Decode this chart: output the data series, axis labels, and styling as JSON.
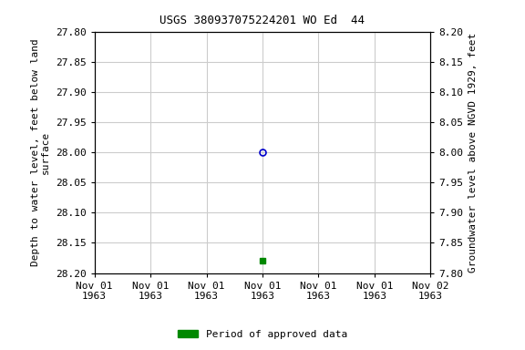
{
  "title": "USGS 380937075224201 WO Ed  44",
  "ylabel_left": "Depth to water level, feet below land\nsurface",
  "ylabel_right": "Groundwater level above NGVD 1929, feet",
  "ylim_left_top": 27.8,
  "ylim_left_bottom": 28.2,
  "ylim_right_top": 8.2,
  "ylim_right_bottom": 7.8,
  "xlim": [
    0,
    6
  ],
  "xtick_positions": [
    0,
    1,
    2,
    3,
    4,
    5,
    6
  ],
  "xtick_labels": [
    "Nov 01\n1963",
    "Nov 01\n1963",
    "Nov 01\n1963",
    "Nov 01\n1963",
    "Nov 01\n1963",
    "Nov 01\n1963",
    "Nov 02\n1963"
  ],
  "yticks_left": [
    27.8,
    27.85,
    27.9,
    27.95,
    28.0,
    28.05,
    28.1,
    28.15,
    28.2
  ],
  "yticks_right": [
    8.2,
    8.15,
    8.1,
    8.05,
    8.0,
    7.95,
    7.9,
    7.85,
    7.8
  ],
  "data_blue_x": 3,
  "data_blue_y": 28.0,
  "data_green_x": 3,
  "data_green_y": 28.18,
  "blue_color": "#0000cc",
  "green_color": "#008800",
  "legend_label": "Period of approved data",
  "bg_color": "#ffffff",
  "grid_color": "#cccccc",
  "font_family": "monospace",
  "title_fontsize": 9,
  "tick_fontsize": 8,
  "label_fontsize": 8
}
